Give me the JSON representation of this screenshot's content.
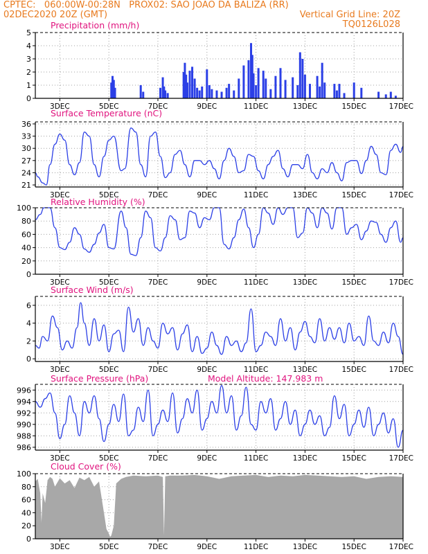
{
  "header": {
    "line1_left": "CPTEC:   060:00W-00:28N   PROX02: SAO JOAO DA BALIZA (RR)",
    "line2_left": "02DEC2020 20Z (GMT)",
    "line2_right": "Vertical Grid Line: 20Z",
    "line3_right": "TQ0126L028"
  },
  "colors": {
    "header": "#e87a1e",
    "title": "#e0137e",
    "line": "#2b3fe6",
    "bar": "#2b3fe6",
    "cloud": "#a8a8a8",
    "grid": "#a0a0a0"
  },
  "x_tick_labels": [
    "3DEC",
    "5DEC",
    "7DEC",
    "9DEC",
    "11DEC",
    "13DEC",
    "15DEC",
    "17DEC"
  ],
  "x_tick_days": [
    3,
    5,
    7,
    9,
    11,
    13,
    15,
    17
  ],
  "x_range_days": [
    2.0,
    17.0
  ],
  "chart_data": [
    {
      "type": "bar",
      "title": "Precipitation (mm/h)",
      "ylim": [
        0,
        5
      ],
      "yticks": [
        0,
        1,
        2,
        3,
        4,
        5
      ],
      "x_days": [
        5.1,
        5.15,
        5.2,
        5.25,
        6.3,
        6.4,
        7.1,
        7.2,
        7.25,
        7.3,
        7.4,
        8.05,
        8.1,
        8.15,
        8.2,
        8.3,
        8.4,
        8.5,
        8.6,
        8.7,
        8.8,
        9.0,
        9.1,
        9.2,
        9.4,
        9.6,
        9.8,
        9.9,
        10.1,
        10.3,
        10.5,
        10.7,
        10.8,
        10.85,
        10.9,
        11.0,
        11.1,
        11.3,
        11.4,
        11.6,
        11.8,
        12.0,
        12.2,
        12.5,
        12.7,
        12.8,
        12.9,
        13.0,
        13.2,
        13.5,
        13.6,
        13.7,
        13.8,
        14.2,
        14.3,
        14.4,
        14.6,
        15.0,
        15.3,
        16.0,
        16.3,
        16.5,
        16.7
      ],
      "values": [
        1.2,
        1.7,
        1.4,
        0.8,
        1.0,
        0.5,
        0.8,
        1.6,
        0.9,
        0.6,
        0.4,
        2.0,
        2.7,
        1.8,
        1.2,
        2.1,
        2.4,
        1.5,
        0.8,
        0.6,
        0.9,
        2.2,
        1.0,
        0.7,
        0.6,
        0.5,
        0.8,
        1.1,
        0.6,
        1.5,
        2.5,
        2.9,
        4.2,
        3.3,
        1.9,
        1.0,
        2.3,
        2.1,
        1.5,
        0.7,
        1.7,
        2.3,
        1.4,
        1.6,
        1.0,
        3.5,
        3.0,
        1.8,
        1.1,
        1.7,
        0.9,
        2.7,
        1.2,
        1.1,
        0.6,
        1.1,
        0.4,
        1.2,
        0.8,
        0.5,
        0.3,
        0.5,
        0.2
      ]
    },
    {
      "type": "line",
      "title": "Surface Temperature (nC)",
      "ylim": [
        20.5,
        36.5
      ],
      "yticks": [
        21,
        24,
        27,
        30,
        33,
        36
      ],
      "x_days": [
        2.0,
        2.1,
        2.3,
        2.45,
        2.6,
        2.8,
        3.0,
        3.2,
        3.4,
        3.6,
        3.8,
        4.0,
        4.2,
        4.4,
        4.6,
        4.8,
        5.0,
        5.2,
        5.5,
        5.65,
        5.9,
        6.1,
        6.3,
        6.5,
        6.7,
        6.9,
        7.1,
        7.3,
        7.5,
        7.7,
        7.9,
        8.1,
        8.3,
        8.5,
        8.7,
        8.9,
        9.1,
        9.3,
        9.5,
        9.7,
        9.9,
        10.1,
        10.3,
        10.5,
        10.7,
        10.9,
        11.1,
        11.3,
        11.5,
        11.7,
        11.9,
        12.1,
        12.3,
        12.5,
        12.7,
        12.9,
        13.1,
        13.3,
        13.5,
        13.7,
        13.9,
        14.1,
        14.3,
        14.5,
        14.7,
        14.9,
        15.1,
        15.3,
        15.5,
        15.7,
        15.9,
        16.1,
        16.3,
        16.5,
        16.7,
        16.9,
        17.0
      ],
      "values": [
        24,
        23.0,
        21.5,
        21.0,
        26,
        31,
        33.5,
        32,
        26,
        23.5,
        26.5,
        34,
        33,
        26,
        23,
        28,
        32,
        33,
        24.5,
        25,
        35,
        34,
        26,
        23,
        33,
        34,
        28,
        22.8,
        24,
        28.5,
        29.5,
        26,
        23,
        27,
        27,
        26,
        27,
        25,
        22.5,
        27,
        30,
        28,
        24,
        24.5,
        28.5,
        28,
        24.5,
        22.5,
        26,
        28,
        29.5,
        25,
        23,
        26,
        26,
        25,
        28.5,
        24,
        22.5,
        25,
        24,
        26.5,
        24,
        22,
        26.5,
        27,
        27,
        23.8,
        27,
        30.5,
        28.5,
        24,
        23.5,
        29.5,
        31,
        29,
        30.5
      ]
    },
    {
      "type": "line",
      "title": "Relative Humidity (%)",
      "ylim": [
        0,
        100
      ],
      "yticks": [
        0,
        20,
        40,
        60,
        80,
        100
      ],
      "x_days": [
        2.0,
        2.2,
        2.35,
        2.6,
        2.8,
        3.0,
        3.2,
        3.4,
        3.6,
        3.8,
        4.0,
        4.2,
        4.4,
        4.6,
        4.8,
        5.0,
        5.2,
        5.5,
        5.7,
        5.9,
        6.1,
        6.3,
        6.5,
        6.7,
        6.9,
        7.1,
        7.3,
        7.5,
        7.7,
        7.9,
        8.1,
        8.3,
        8.5,
        8.7,
        8.9,
        9.1,
        9.3,
        9.5,
        9.7,
        9.9,
        10.1,
        10.3,
        10.5,
        10.7,
        10.9,
        11.1,
        11.3,
        11.5,
        11.7,
        11.9,
        12.1,
        12.3,
        12.5,
        12.7,
        12.9,
        13.1,
        13.3,
        13.5,
        13.7,
        13.9,
        14.1,
        14.3,
        14.5,
        14.7,
        14.9,
        15.1,
        15.3,
        15.5,
        15.7,
        15.9,
        16.1,
        16.3,
        16.5,
        16.7,
        16.9,
        17.0
      ],
      "values": [
        82,
        90,
        100,
        100,
        70,
        40,
        37,
        48,
        70,
        60,
        38,
        33,
        45,
        62,
        75,
        40,
        38,
        95,
        70,
        30,
        28,
        55,
        95,
        85,
        40,
        35,
        55,
        88,
        82,
        52,
        55,
        95,
        92,
        70,
        85,
        82,
        100,
        100,
        45,
        38,
        55,
        82,
        98,
        70,
        40,
        60,
        100,
        92,
        75,
        100,
        90,
        100,
        100,
        55,
        62,
        100,
        92,
        70,
        100,
        92,
        68,
        100,
        100,
        60,
        70,
        75,
        52,
        65,
        80,
        78,
        60,
        48,
        70,
        80,
        48,
        55
      ]
    },
    {
      "type": "line",
      "title": "Surface Wind (m/s)",
      "ylim": [
        -0.3,
        7
      ],
      "yticks": [
        0,
        2,
        4,
        6
      ],
      "x_days": [
        2.0,
        2.15,
        2.3,
        2.5,
        2.7,
        2.9,
        3.1,
        3.3,
        3.5,
        3.7,
        3.85,
        4.0,
        4.2,
        4.4,
        4.6,
        4.8,
        5.0,
        5.2,
        5.4,
        5.6,
        5.8,
        6.0,
        6.2,
        6.4,
        6.6,
        6.8,
        7.0,
        7.2,
        7.4,
        7.6,
        7.8,
        8.0,
        8.2,
        8.4,
        8.6,
        8.8,
        9.0,
        9.2,
        9.4,
        9.6,
        9.8,
        10.0,
        10.2,
        10.4,
        10.6,
        10.8,
        11.0,
        11.2,
        11.4,
        11.6,
        11.8,
        12.0,
        12.2,
        12.4,
        12.6,
        12.8,
        13.0,
        13.2,
        13.4,
        13.6,
        13.8,
        14.0,
        14.2,
        14.4,
        14.6,
        14.8,
        15.0,
        15.2,
        15.4,
        15.6,
        15.8,
        16.0,
        16.2,
        16.4,
        16.6,
        16.8,
        17.0
      ],
      "values": [
        1.5,
        1.2,
        2.5,
        2.0,
        4.8,
        3.5,
        1.0,
        2.0,
        1.2,
        3.5,
        6.3,
        4.0,
        1.5,
        4.5,
        2.0,
        3.8,
        0.8,
        2.8,
        3.2,
        0.8,
        5.8,
        3.0,
        4.5,
        1.5,
        3.5,
        2.0,
        1.2,
        4.0,
        2.8,
        3.5,
        1.0,
        2.8,
        3.8,
        0.8,
        2.5,
        0.6,
        1.2,
        3.0,
        1.5,
        0.5,
        2.5,
        1.5,
        2.0,
        0.8,
        1.8,
        5.6,
        0.8,
        1.5,
        3.0,
        2.5,
        1.5,
        4.5,
        2.0,
        3.5,
        1.0,
        3.0,
        4.2,
        2.5,
        1.8,
        4.5,
        2.0,
        3.5,
        2.2,
        3.5,
        1.8,
        4.0,
        2.0,
        2.5,
        1.5,
        4.8,
        2.0,
        1.5,
        3.0,
        1.8,
        4.0,
        2.5,
        0.5
      ]
    },
    {
      "type": "line",
      "title": "Surface Pressure (hPa)",
      "annotation": "Model Altitude: 147.983 m",
      "ylim": [
        985.5,
        997
      ],
      "yticks": [
        986,
        988,
        990,
        992,
        994,
        996
      ],
      "x_days": [
        2.0,
        2.2,
        2.4,
        2.6,
        2.8,
        3.0,
        3.2,
        3.4,
        3.6,
        3.8,
        4.0,
        4.2,
        4.4,
        4.6,
        4.8,
        5.0,
        5.2,
        5.4,
        5.6,
        5.8,
        6.0,
        6.2,
        6.4,
        6.6,
        6.8,
        7.0,
        7.2,
        7.4,
        7.6,
        7.8,
        8.0,
        8.2,
        8.4,
        8.6,
        8.8,
        9.0,
        9.2,
        9.4,
        9.6,
        9.8,
        10.0,
        10.2,
        10.4,
        10.6,
        10.8,
        11.0,
        11.2,
        11.4,
        11.6,
        11.8,
        12.0,
        12.2,
        12.4,
        12.6,
        12.8,
        13.0,
        13.2,
        13.4,
        13.6,
        13.8,
        14.0,
        14.2,
        14.4,
        14.6,
        14.8,
        15.0,
        15.2,
        15.4,
        15.6,
        15.8,
        16.0,
        16.2,
        16.4,
        16.6,
        16.8,
        17.0
      ],
      "values": [
        994,
        993,
        994.5,
        995.5,
        992,
        987.5,
        990,
        995,
        992,
        988,
        994,
        992,
        995,
        991,
        987,
        990,
        993.5,
        990.5,
        995.3,
        988,
        989,
        993,
        990.5,
        996,
        988,
        990,
        992.5,
        990.5,
        995.5,
        988.5,
        991,
        994.5,
        992,
        996,
        989,
        991,
        994,
        992,
        996.8,
        992,
        995,
        989,
        991.5,
        996.5,
        990,
        989,
        994,
        992,
        994.5,
        989,
        991,
        994,
        990,
        992.5,
        988,
        990,
        992.5,
        990,
        991.5,
        988,
        989.5,
        995,
        991,
        993.5,
        988,
        990,
        992.5,
        989.5,
        993,
        988,
        990,
        992,
        988.5,
        991,
        986,
        989
      ]
    },
    {
      "type": "area",
      "title": "Cloud Cover (%)",
      "ylim": [
        0,
        100
      ],
      "yticks": [
        0,
        20,
        40,
        60,
        80,
        100
      ],
      "x_days": [
        2.0,
        2.1,
        2.2,
        2.25,
        2.3,
        2.4,
        2.5,
        2.6,
        2.7,
        2.8,
        3.0,
        3.2,
        3.4,
        3.6,
        3.8,
        4.0,
        4.2,
        4.4,
        4.6,
        4.8,
        4.9,
        5.0,
        5.05,
        5.1,
        5.2,
        5.3,
        5.5,
        5.7,
        6.0,
        6.5,
        7.0,
        7.2,
        7.25,
        7.3,
        7.5,
        8.0,
        8.5,
        9.0,
        9.5,
        10.0,
        10.5,
        11.0,
        11.5,
        12.0,
        12.5,
        13.0,
        13.5,
        14.0,
        14.5,
        15.0,
        15.5,
        16.0,
        16.5,
        17.0
      ],
      "values": [
        88,
        92,
        70,
        25,
        70,
        55,
        90,
        95,
        92,
        80,
        93,
        85,
        90,
        78,
        94,
        90,
        95,
        80,
        88,
        40,
        15,
        8,
        3,
        5,
        20,
        85,
        92,
        95,
        97,
        96,
        97,
        95,
        5,
        96,
        97,
        97,
        98,
        96,
        92,
        96,
        97,
        98,
        95,
        97,
        96,
        98,
        97,
        96,
        95,
        96,
        92,
        95,
        96,
        95
      ]
    }
  ]
}
